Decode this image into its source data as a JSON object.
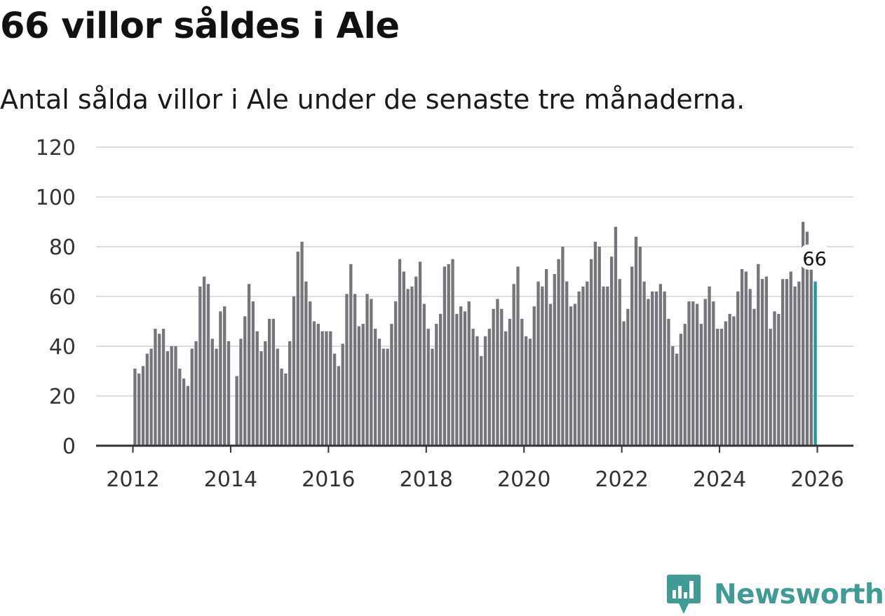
{
  "header": {
    "title": "66 villor såldes i Ale",
    "subtitle": "Antal sålda villor i Ale under de senaste tre månaderna."
  },
  "brand": {
    "name": "Newsworthy",
    "color": "#3f9c94"
  },
  "colors": {
    "bar": "#76757b",
    "highlight": "#1b9d94",
    "grid": "#dcdcdc"
  },
  "chart_data": {
    "type": "bar",
    "title": "66 villor såldes i Ale",
    "subtitle": "Antal sålda villor i Ale under de senaste tre månaderna.",
    "xlabel": "",
    "ylabel": "",
    "ylim": [
      0,
      120
    ],
    "yticks": [
      0,
      20,
      40,
      60,
      80,
      100,
      120
    ],
    "xticks": [
      {
        "label": "2012",
        "value": 2012
      },
      {
        "label": "2014",
        "value": 2014
      },
      {
        "label": "2016",
        "value": 2016
      },
      {
        "label": "2018",
        "value": 2018
      },
      {
        "label": "2020",
        "value": 2020
      },
      {
        "label": "2022",
        "value": 2022
      },
      {
        "label": "2024",
        "value": 2024
      },
      {
        "label": "2026",
        "value": 2026
      }
    ],
    "x_start": 2012,
    "step_months": 1,
    "grid": true,
    "highlight_last": true,
    "last_label": "66",
    "values": [
      31,
      29,
      32,
      37,
      39,
      47,
      45,
      47,
      38,
      40,
      40,
      31,
      27,
      24,
      39,
      42,
      64,
      68,
      65,
      43,
      39,
      54,
      56,
      42,
      null,
      28,
      43,
      52,
      65,
      58,
      46,
      38,
      42,
      51,
      51,
      39,
      31,
      29,
      42,
      60,
      78,
      82,
      66,
      58,
      50,
      49,
      46,
      46,
      46,
      37,
      32,
      41,
      61,
      73,
      61,
      48,
      49,
      61,
      59,
      47,
      43,
      39,
      39,
      49,
      58,
      75,
      70,
      63,
      64,
      68,
      74,
      57,
      47,
      39,
      49,
      53,
      72,
      73,
      75,
      53,
      56,
      54,
      58,
      47,
      44,
      36,
      44,
      47,
      55,
      59,
      55,
      46,
      51,
      65,
      72,
      51,
      44,
      43,
      56,
      66,
      64,
      71,
      57,
      69,
      75,
      80,
      66,
      56,
      57,
      62,
      64,
      66,
      75,
      82,
      80,
      64,
      64,
      76,
      88,
      67,
      50,
      55,
      72,
      84,
      80,
      66,
      59,
      62,
      62,
      65,
      62,
      51,
      40,
      37,
      45,
      49,
      58,
      58,
      57,
      49,
      59,
      64,
      58,
      47,
      47,
      50,
      53,
      52,
      62,
      71,
      70,
      63,
      55,
      73,
      67,
      68,
      47,
      54,
      53,
      67,
      67,
      70,
      64,
      66,
      90,
      86,
      74,
      66
    ]
  }
}
